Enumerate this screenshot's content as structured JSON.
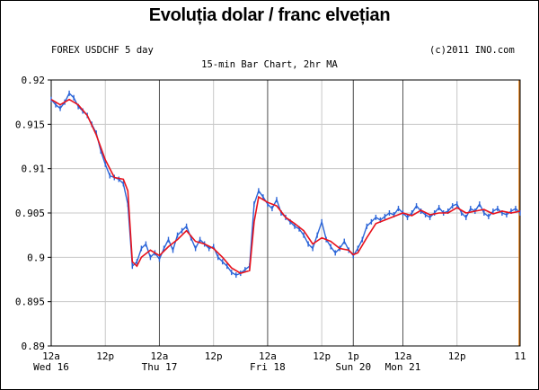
{
  "header": {
    "title": "Evoluția dolar / franc elvețian",
    "instrument": "FOREX USDCHF 5 day",
    "copyright": "(c)2011 INO.com",
    "subtitle": "15-min Bar Chart, 2hr MA"
  },
  "colors": {
    "bars": "#2a64d8",
    "moving_average": "#e8121c",
    "grid": "#c8c8c8",
    "session_lines": "#555555",
    "last_marker": "#e07a10"
  },
  "chart_data": {
    "type": "line",
    "title": "15-min Bar Chart, 2hr MA",
    "ylim": [
      0.89,
      0.92
    ],
    "y_ticks": [
      0.92,
      0.915,
      0.91,
      0.905,
      0.9,
      0.895,
      0.89
    ],
    "y_tick_labels": [
      "0.92",
      "0.915",
      "0.91",
      "0.905",
      "0.9",
      "0.895",
      "0.89"
    ],
    "xlim": [
      0,
      104
    ],
    "x_ticks": [
      {
        "x": 0,
        "label": "12a",
        "day": "Wed 16"
      },
      {
        "x": 12,
        "label": "12p",
        "day": ""
      },
      {
        "x": 24,
        "label": "12a",
        "day": "Thu 17"
      },
      {
        "x": 36,
        "label": "12p",
        "day": ""
      },
      {
        "x": 48,
        "label": "12a",
        "day": "Fri 18"
      },
      {
        "x": 60,
        "label": "12p",
        "day": ""
      },
      {
        "x": 67,
        "label": "1p",
        "day": "Sun 20"
      },
      {
        "x": 78,
        "label": "12a",
        "day": "Mon 21"
      },
      {
        "x": 90,
        "label": "12p",
        "day": ""
      },
      {
        "x": 104,
        "label": "11",
        "day": ""
      }
    ],
    "session_lines_x": [
      24,
      48,
      67,
      78
    ],
    "grid": true,
    "series": [
      {
        "name": "USDCHF",
        "x": [
          0,
          1,
          2,
          3,
          4,
          5,
          6,
          7,
          8,
          9,
          10,
          11,
          12,
          13,
          14,
          15,
          16,
          17,
          18,
          19,
          20,
          21,
          22,
          23,
          24,
          25,
          26,
          27,
          28,
          29,
          30,
          31,
          32,
          33,
          34,
          35,
          36,
          37,
          38,
          39,
          40,
          41,
          42,
          43,
          44,
          45,
          46,
          47,
          48,
          49,
          50,
          51,
          52,
          53,
          54,
          55,
          56,
          57,
          58,
          59,
          60,
          61,
          62,
          63,
          64,
          65,
          66,
          67,
          68,
          69,
          70,
          71,
          72,
          73,
          74,
          75,
          76,
          77,
          78,
          79,
          80,
          81,
          82,
          83,
          84,
          85,
          86,
          87,
          88,
          89,
          90,
          91,
          92,
          93,
          94,
          95,
          96,
          97,
          98,
          99,
          100,
          101,
          102,
          103,
          104
        ],
        "y": [
          0.9178,
          0.9172,
          0.9168,
          0.9175,
          0.9185,
          0.918,
          0.917,
          0.9165,
          0.916,
          0.915,
          0.914,
          0.912,
          0.9105,
          0.9092,
          0.909,
          0.9088,
          0.9083,
          0.906,
          0.899,
          0.8995,
          0.901,
          0.9015,
          0.9,
          0.9005,
          0.8998,
          0.901,
          0.902,
          0.9008,
          0.9025,
          0.903,
          0.9035,
          0.9022,
          0.901,
          0.902,
          0.9015,
          0.901,
          0.9012,
          0.9,
          0.8995,
          0.899,
          0.8983,
          0.898,
          0.8982,
          0.8986,
          0.899,
          0.906,
          0.9075,
          0.9068,
          0.906,
          0.9055,
          0.9065,
          0.905,
          0.9045,
          0.904,
          0.9035,
          0.9032,
          0.9025,
          0.9015,
          0.901,
          0.9025,
          0.904,
          0.902,
          0.9012,
          0.9005,
          0.901,
          0.9018,
          0.9008,
          0.9002,
          0.901,
          0.902,
          0.9035,
          0.904,
          0.9045,
          0.9042,
          0.9046,
          0.905,
          0.9048,
          0.9055,
          0.905,
          0.9045,
          0.905,
          0.9058,
          0.9052,
          0.9048,
          0.9045,
          0.905,
          0.9056,
          0.905,
          0.9052,
          0.9058,
          0.906,
          0.905,
          0.9045,
          0.9055,
          0.9052,
          0.906,
          0.905,
          0.9046,
          0.9052,
          0.9055,
          0.905,
          0.9048,
          0.9052,
          0.9055,
          0.905
        ]
      },
      {
        "name": "2hr MA",
        "x": [
          0,
          2,
          4,
          6,
          8,
          10,
          12,
          14,
          16,
          17,
          18,
          19,
          20,
          22,
          24,
          26,
          28,
          30,
          32,
          34,
          36,
          38,
          40,
          42,
          44,
          45,
          46,
          48,
          50,
          52,
          54,
          56,
          58,
          60,
          62,
          64,
          66,
          67,
          68,
          70,
          72,
          74,
          76,
          78,
          80,
          82,
          84,
          86,
          88,
          90,
          92,
          94,
          96,
          98,
          100,
          102,
          104
        ],
        "y": [
          0.9178,
          0.9172,
          0.9178,
          0.9172,
          0.916,
          0.9138,
          0.911,
          0.909,
          0.9088,
          0.9075,
          0.8995,
          0.899,
          0.9,
          0.9008,
          0.9002,
          0.9012,
          0.902,
          0.903,
          0.9018,
          0.9015,
          0.901,
          0.9,
          0.8988,
          0.8982,
          0.8985,
          0.904,
          0.9068,
          0.9062,
          0.9058,
          0.9045,
          0.9038,
          0.903,
          0.9015,
          0.9022,
          0.9018,
          0.901,
          0.9008,
          0.9003,
          0.9005,
          0.9022,
          0.9038,
          0.9042,
          0.9046,
          0.905,
          0.9047,
          0.9053,
          0.9048,
          0.905,
          0.905,
          0.9056,
          0.905,
          0.9052,
          0.9054,
          0.9049,
          0.9052,
          0.905,
          0.9052
        ]
      }
    ]
  }
}
